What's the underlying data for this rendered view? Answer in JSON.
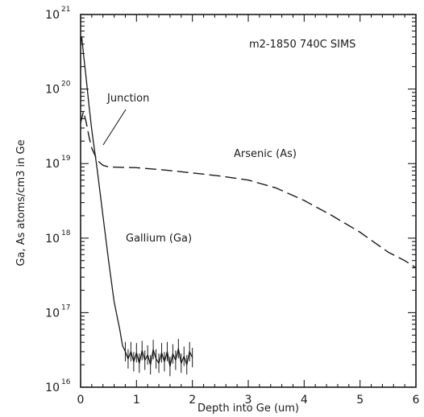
{
  "chart_data": {
    "type": "line",
    "title": "m2-1850 740C SIMS",
    "xlabel": "Depth into Ge (um)",
    "ylabel": "Ga, As atoms/cm3 in Ge",
    "xlim": [
      0,
      6
    ],
    "ylim": [
      1e+16,
      1e+21
    ],
    "yscale": "log",
    "grid": false,
    "xticks": [
      0,
      1,
      2,
      3,
      4,
      5,
      6
    ],
    "xtick_labels": [
      "0",
      "1",
      "2",
      "3",
      "4",
      "5",
      "6"
    ],
    "yticks": [
      {
        "base": "10",
        "exp": "16",
        "value": 1e+16
      },
      {
        "base": "10",
        "exp": "17",
        "value": 1e+17
      },
      {
        "base": "10",
        "exp": "18",
        "value": 1e+18
      },
      {
        "base": "10",
        "exp": "19",
        "value": 1e+19
      },
      {
        "base": "10",
        "exp": "20",
        "value": 1e+20
      },
      {
        "base": "10",
        "exp": "21",
        "value": 1e+21
      }
    ],
    "series": [
      {
        "name": "Arsenic (As)",
        "style": "dashed",
        "color": "#1a1a1a",
        "x": [
          0.0,
          0.05,
          0.1,
          0.15,
          0.2,
          0.3,
          0.4,
          0.5,
          1.0,
          1.5,
          2.0,
          2.5,
          3.0,
          3.5,
          4.0,
          4.5,
          5.0,
          5.5,
          5.8,
          6.0
        ],
        "y": [
          3.5e+19,
          5e+19,
          3.6e+19,
          2.3e+19,
          1.6e+19,
          1.1e+19,
          9.5e+18,
          9e+18,
          8.8e+18,
          8.2e+18,
          7.5e+18,
          6.8e+18,
          6e+18,
          4.7e+18,
          3.2e+18,
          2e+18,
          1.2e+18,
          6.5e+17,
          5e+17,
          4e+17
        ]
      },
      {
        "name": "Gallium (Ga)",
        "style": "solid",
        "color": "#1a1a1a",
        "x": [
          0.0,
          0.02,
          0.05,
          0.1,
          0.15,
          0.2,
          0.3,
          0.4,
          0.5,
          0.6,
          0.7,
          0.75,
          0.8,
          0.85,
          0.9,
          0.95,
          1.0,
          1.05,
          1.1,
          1.15,
          1.2,
          1.25,
          1.3,
          1.35,
          1.4,
          1.45,
          1.5,
          1.55,
          1.6,
          1.65,
          1.7,
          1.75,
          1.8,
          1.85,
          1.9,
          1.95,
          2.0
        ],
        "y": [
          4e+20,
          5e+20,
          3e+20,
          1.4e+20,
          6e+19,
          2.8e+19,
          8e+18,
          2e+18,
          5e+17,
          1.4e+17,
          6e+16,
          3.6e+16,
          3e+16,
          2.4e+16,
          3e+16,
          2.2e+16,
          2.9e+16,
          2.1e+16,
          3.1e+16,
          2.3e+16,
          2.7e+16,
          2e+16,
          3.2e+16,
          2.4e+16,
          2.1e+16,
          2.9e+16,
          2.2e+16,
          3e+16,
          1.9e+16,
          2.8e+16,
          2.3e+16,
          3.3e+16,
          2.1e+16,
          2.6e+16,
          2e+16,
          3e+16,
          2.5e+16
        ]
      }
    ],
    "annotations": {
      "sample_label": "m2-1850 740C SIMS",
      "junction": "Junction",
      "arsenic_label": "Arsenic (As)",
      "gallium_label": "Gallium (Ga)"
    }
  }
}
